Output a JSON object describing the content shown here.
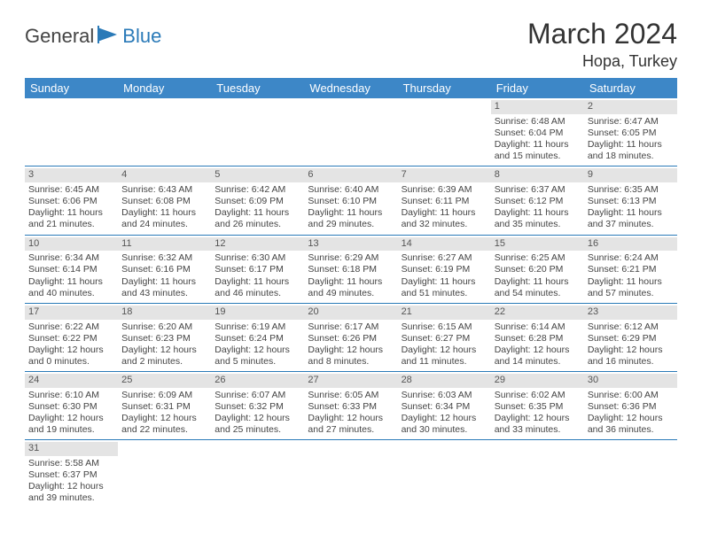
{
  "brand": {
    "part1": "General",
    "part2": "Blue"
  },
  "title": "March 2024",
  "location": "Hopa, Turkey",
  "day_headers": [
    "Sunday",
    "Monday",
    "Tuesday",
    "Wednesday",
    "Thursday",
    "Friday",
    "Saturday"
  ],
  "colors": {
    "header_bg": "#3d87c7",
    "header_text": "#ffffff",
    "cell_border": "#2a7ab8",
    "daynum_bg": "#e4e4e4",
    "brand_accent": "#2a7ab8"
  },
  "weeks": [
    [
      {
        "num": "",
        "sunrise": "",
        "sunset": "",
        "daylight": ""
      },
      {
        "num": "",
        "sunrise": "",
        "sunset": "",
        "daylight": ""
      },
      {
        "num": "",
        "sunrise": "",
        "sunset": "",
        "daylight": ""
      },
      {
        "num": "",
        "sunrise": "",
        "sunset": "",
        "daylight": ""
      },
      {
        "num": "",
        "sunrise": "",
        "sunset": "",
        "daylight": ""
      },
      {
        "num": "1",
        "sunrise": "Sunrise: 6:48 AM",
        "sunset": "Sunset: 6:04 PM",
        "daylight": "Daylight: 11 hours and 15 minutes."
      },
      {
        "num": "2",
        "sunrise": "Sunrise: 6:47 AM",
        "sunset": "Sunset: 6:05 PM",
        "daylight": "Daylight: 11 hours and 18 minutes."
      }
    ],
    [
      {
        "num": "3",
        "sunrise": "Sunrise: 6:45 AM",
        "sunset": "Sunset: 6:06 PM",
        "daylight": "Daylight: 11 hours and 21 minutes."
      },
      {
        "num": "4",
        "sunrise": "Sunrise: 6:43 AM",
        "sunset": "Sunset: 6:08 PM",
        "daylight": "Daylight: 11 hours and 24 minutes."
      },
      {
        "num": "5",
        "sunrise": "Sunrise: 6:42 AM",
        "sunset": "Sunset: 6:09 PM",
        "daylight": "Daylight: 11 hours and 26 minutes."
      },
      {
        "num": "6",
        "sunrise": "Sunrise: 6:40 AM",
        "sunset": "Sunset: 6:10 PM",
        "daylight": "Daylight: 11 hours and 29 minutes."
      },
      {
        "num": "7",
        "sunrise": "Sunrise: 6:39 AM",
        "sunset": "Sunset: 6:11 PM",
        "daylight": "Daylight: 11 hours and 32 minutes."
      },
      {
        "num": "8",
        "sunrise": "Sunrise: 6:37 AM",
        "sunset": "Sunset: 6:12 PM",
        "daylight": "Daylight: 11 hours and 35 minutes."
      },
      {
        "num": "9",
        "sunrise": "Sunrise: 6:35 AM",
        "sunset": "Sunset: 6:13 PM",
        "daylight": "Daylight: 11 hours and 37 minutes."
      }
    ],
    [
      {
        "num": "10",
        "sunrise": "Sunrise: 6:34 AM",
        "sunset": "Sunset: 6:14 PM",
        "daylight": "Daylight: 11 hours and 40 minutes."
      },
      {
        "num": "11",
        "sunrise": "Sunrise: 6:32 AM",
        "sunset": "Sunset: 6:16 PM",
        "daylight": "Daylight: 11 hours and 43 minutes."
      },
      {
        "num": "12",
        "sunrise": "Sunrise: 6:30 AM",
        "sunset": "Sunset: 6:17 PM",
        "daylight": "Daylight: 11 hours and 46 minutes."
      },
      {
        "num": "13",
        "sunrise": "Sunrise: 6:29 AM",
        "sunset": "Sunset: 6:18 PM",
        "daylight": "Daylight: 11 hours and 49 minutes."
      },
      {
        "num": "14",
        "sunrise": "Sunrise: 6:27 AM",
        "sunset": "Sunset: 6:19 PM",
        "daylight": "Daylight: 11 hours and 51 minutes."
      },
      {
        "num": "15",
        "sunrise": "Sunrise: 6:25 AM",
        "sunset": "Sunset: 6:20 PM",
        "daylight": "Daylight: 11 hours and 54 minutes."
      },
      {
        "num": "16",
        "sunrise": "Sunrise: 6:24 AM",
        "sunset": "Sunset: 6:21 PM",
        "daylight": "Daylight: 11 hours and 57 minutes."
      }
    ],
    [
      {
        "num": "17",
        "sunrise": "Sunrise: 6:22 AM",
        "sunset": "Sunset: 6:22 PM",
        "daylight": "Daylight: 12 hours and 0 minutes."
      },
      {
        "num": "18",
        "sunrise": "Sunrise: 6:20 AM",
        "sunset": "Sunset: 6:23 PM",
        "daylight": "Daylight: 12 hours and 2 minutes."
      },
      {
        "num": "19",
        "sunrise": "Sunrise: 6:19 AM",
        "sunset": "Sunset: 6:24 PM",
        "daylight": "Daylight: 12 hours and 5 minutes."
      },
      {
        "num": "20",
        "sunrise": "Sunrise: 6:17 AM",
        "sunset": "Sunset: 6:26 PM",
        "daylight": "Daylight: 12 hours and 8 minutes."
      },
      {
        "num": "21",
        "sunrise": "Sunrise: 6:15 AM",
        "sunset": "Sunset: 6:27 PM",
        "daylight": "Daylight: 12 hours and 11 minutes."
      },
      {
        "num": "22",
        "sunrise": "Sunrise: 6:14 AM",
        "sunset": "Sunset: 6:28 PM",
        "daylight": "Daylight: 12 hours and 14 minutes."
      },
      {
        "num": "23",
        "sunrise": "Sunrise: 6:12 AM",
        "sunset": "Sunset: 6:29 PM",
        "daylight": "Daylight: 12 hours and 16 minutes."
      }
    ],
    [
      {
        "num": "24",
        "sunrise": "Sunrise: 6:10 AM",
        "sunset": "Sunset: 6:30 PM",
        "daylight": "Daylight: 12 hours and 19 minutes."
      },
      {
        "num": "25",
        "sunrise": "Sunrise: 6:09 AM",
        "sunset": "Sunset: 6:31 PM",
        "daylight": "Daylight: 12 hours and 22 minutes."
      },
      {
        "num": "26",
        "sunrise": "Sunrise: 6:07 AM",
        "sunset": "Sunset: 6:32 PM",
        "daylight": "Daylight: 12 hours and 25 minutes."
      },
      {
        "num": "27",
        "sunrise": "Sunrise: 6:05 AM",
        "sunset": "Sunset: 6:33 PM",
        "daylight": "Daylight: 12 hours and 27 minutes."
      },
      {
        "num": "28",
        "sunrise": "Sunrise: 6:03 AM",
        "sunset": "Sunset: 6:34 PM",
        "daylight": "Daylight: 12 hours and 30 minutes."
      },
      {
        "num": "29",
        "sunrise": "Sunrise: 6:02 AM",
        "sunset": "Sunset: 6:35 PM",
        "daylight": "Daylight: 12 hours and 33 minutes."
      },
      {
        "num": "30",
        "sunrise": "Sunrise: 6:00 AM",
        "sunset": "Sunset: 6:36 PM",
        "daylight": "Daylight: 12 hours and 36 minutes."
      }
    ],
    [
      {
        "num": "31",
        "sunrise": "Sunrise: 5:58 AM",
        "sunset": "Sunset: 6:37 PM",
        "daylight": "Daylight: 12 hours and 39 minutes."
      },
      {
        "num": "",
        "sunrise": "",
        "sunset": "",
        "daylight": ""
      },
      {
        "num": "",
        "sunrise": "",
        "sunset": "",
        "daylight": ""
      },
      {
        "num": "",
        "sunrise": "",
        "sunset": "",
        "daylight": ""
      },
      {
        "num": "",
        "sunrise": "",
        "sunset": "",
        "daylight": ""
      },
      {
        "num": "",
        "sunrise": "",
        "sunset": "",
        "daylight": ""
      },
      {
        "num": "",
        "sunrise": "",
        "sunset": "",
        "daylight": ""
      }
    ]
  ]
}
